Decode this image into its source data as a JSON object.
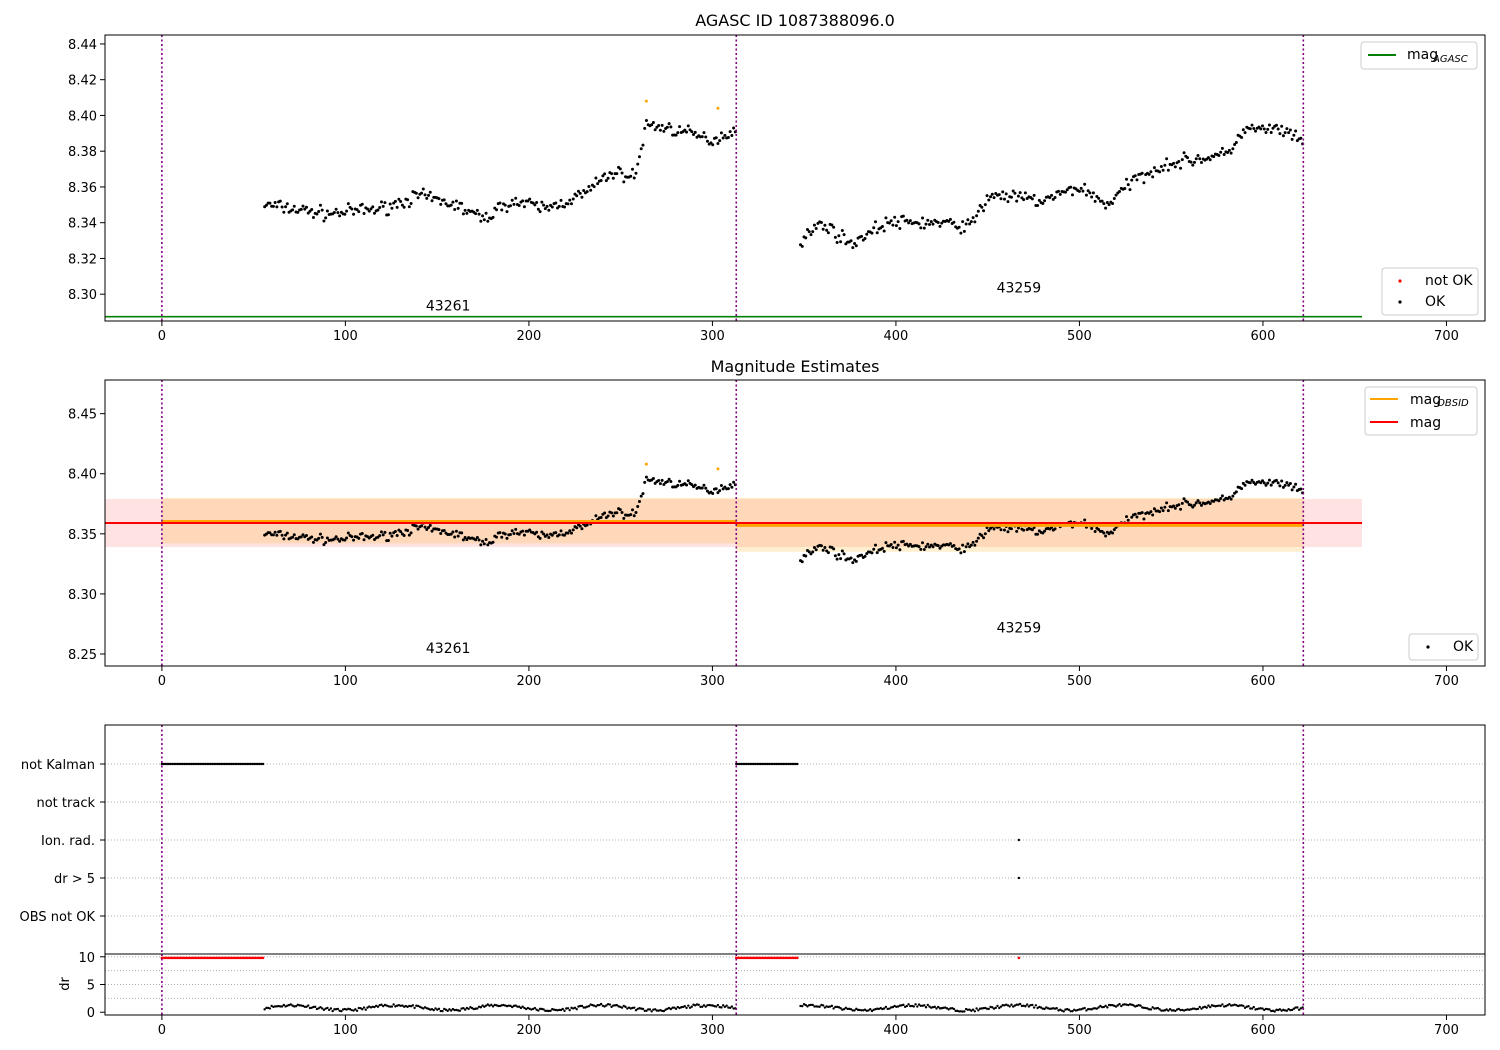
{
  "chart_data": [
    {
      "type": "scatter",
      "title": "AGASC ID 1087388096.0",
      "xlim": [
        -31,
        721
      ],
      "ylim": [
        8.285,
        8.445
      ],
      "xticks": [
        0,
        100,
        200,
        300,
        400,
        500,
        600,
        700
      ],
      "yticks": [
        8.3,
        8.32,
        8.34,
        8.36,
        8.38,
        8.4,
        8.42,
        8.44
      ],
      "obsid_boundaries": [
        0,
        313,
        622
      ],
      "obsid_labels": [
        {
          "text": "43261",
          "x": 156,
          "y": 8.291
        },
        {
          "text": "43259",
          "x": 467,
          "y": 8.301
        }
      ],
      "mag_agasc": {
        "value": 8.2874,
        "x_range": [
          -31,
          654
        ],
        "color": "#008000"
      },
      "legend_upper": {
        "mag_label": "mag",
        "mag_sub": "AGASC"
      },
      "legend_lower": [
        {
          "label": "not OK",
          "color": "#ff0000"
        },
        {
          "label": "OK",
          "color": "#000000"
        }
      ],
      "outlier_points": [
        [
          264,
          8.408
        ],
        [
          303,
          8.404
        ]
      ],
      "outlier_color": "#ffa500",
      "series_ok": [
        {
          "x_range": [
            56,
            313
          ],
          "anchors": [
            [
              56,
              8.35
            ],
            [
              90,
              8.345
            ],
            [
              120,
              8.348
            ],
            [
              140,
              8.355
            ],
            [
              160,
              8.35
            ],
            [
              175,
              8.342
            ],
            [
              190,
              8.352
            ],
            [
              210,
              8.348
            ],
            [
              230,
              8.356
            ],
            [
              245,
              8.368
            ],
            [
              258,
              8.366
            ],
            [
              264,
              8.395
            ],
            [
              280,
              8.392
            ],
            [
              300,
              8.386
            ],
            [
              313,
              8.392
            ]
          ]
        },
        {
          "x_range": [
            348,
            622
          ],
          "anchors": [
            [
              348,
              8.33
            ],
            [
              360,
              8.34
            ],
            [
              375,
              8.328
            ],
            [
              395,
              8.34
            ],
            [
              420,
              8.34
            ],
            [
              440,
              8.338
            ],
            [
              452,
              8.356
            ],
            [
              480,
              8.352
            ],
            [
              500,
              8.36
            ],
            [
              515,
              8.35
            ],
            [
              530,
              8.364
            ],
            [
              545,
              8.372
            ],
            [
              560,
              8.375
            ],
            [
              580,
              8.378
            ],
            [
              590,
              8.392
            ],
            [
              610,
              8.392
            ],
            [
              622,
              8.384
            ]
          ]
        }
      ]
    },
    {
      "type": "scatter",
      "title": "Magnitude Estimates",
      "xlim": [
        -31,
        721
      ],
      "ylim": [
        8.24,
        8.478
      ],
      "xticks": [
        0,
        100,
        200,
        300,
        400,
        500,
        600,
        700
      ],
      "yticks": [
        8.25,
        8.3,
        8.35,
        8.4,
        8.45
      ],
      "obsid_boundaries": [
        0,
        313,
        622
      ],
      "obsid_labels": [
        {
          "text": "43261",
          "x": 156,
          "y": 8.251
        },
        {
          "text": "43259",
          "x": 467,
          "y": 8.268
        }
      ],
      "mag_obsid": [
        {
          "x_range": [
            0,
            313
          ],
          "value": 8.3602,
          "band": [
            8.342,
            8.38
          ],
          "color": "#ffa500"
        },
        {
          "x_range": [
            313,
            622
          ],
          "value": 8.357,
          "band": [
            8.335,
            8.38
          ],
          "color": "#ffa500"
        }
      ],
      "mag": {
        "value": 8.359,
        "band": [
          8.339,
          8.379
        ],
        "x_range": [
          -31,
          654
        ],
        "color": "#ff0000"
      },
      "legend_upper": [
        {
          "label": "mag",
          "sub": "OBSID",
          "color": "#ffa500"
        },
        {
          "label": "mag",
          "sub": "",
          "color": "#ff0000"
        }
      ],
      "legend_lower": [
        {
          "label": "OK",
          "color": "#000000"
        }
      ]
    },
    {
      "type": "scatter",
      "xlim": [
        -31,
        721
      ],
      "xticks": [
        0,
        100,
        200,
        300,
        400,
        500,
        600,
        700
      ],
      "flag_rows": [
        "not Kalman",
        "not track",
        "Ion. rad.",
        "dr > 5",
        "OBS not OK"
      ],
      "flag_segments": [
        {
          "row": "not Kalman",
          "x_range": [
            0,
            56
          ]
        },
        {
          "row": "not Kalman",
          "x_range": [
            313,
            347
          ]
        }
      ],
      "flag_points": [
        {
          "row": "Ion. rad.",
          "x": 467
        },
        {
          "row": "dr > 5",
          "x": 467
        }
      ],
      "dr_panel": {
        "ylabel": "dr",
        "ylim": [
          -0.5,
          10.5
        ],
        "yticks": [
          0,
          5,
          10
        ],
        "clipped_value": 9.8,
        "clipped_color": "#ff0000",
        "clipped_segments": [
          [
            0,
            56
          ],
          [
            313,
            347
          ]
        ],
        "clipped_points": [
          467
        ],
        "dr_segments": [
          [
            56,
            313
          ],
          [
            348,
            622
          ]
        ]
      }
    }
  ]
}
